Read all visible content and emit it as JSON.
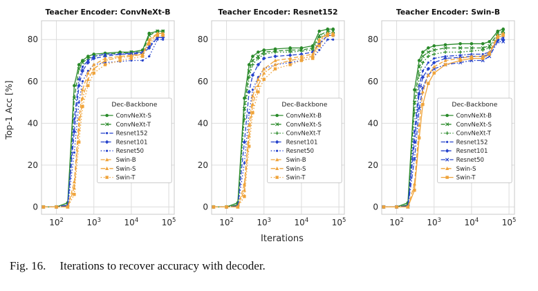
{
  "figure": {
    "caption_label": "Fig. 16.",
    "caption_text": "Iterations to recover accuracy with decoder.",
    "ylabel": "Top-1 Acc [%]",
    "xlabel": "Iterations"
  },
  "colors": {
    "convnext_green": "#2a8a2a",
    "resnet_blue": "#2643cc",
    "swin_orange": "#efa33a",
    "grid": "#dcdcdc",
    "spine": "#c9c9c9",
    "text": "#262626",
    "title": "#111111"
  },
  "chart_data": [
    {
      "type": "line",
      "title": "Teacher Encoder: ConvNeXt-B",
      "xscale": "log",
      "xlim": [
        40,
        140000
      ],
      "ylim": [
        -3.5,
        89
      ],
      "xticks": [
        100,
        1000,
        10000,
        100000
      ],
      "yticks": [
        0,
        20,
        40,
        60,
        80
      ],
      "legend_title": "Dec-Backbone",
      "x": [
        45,
        100,
        200,
        300,
        400,
        500,
        700,
        1000,
        2000,
        5000,
        10000,
        20000,
        30000,
        50000,
        70000
      ],
      "series": [
        {
          "name": "ConvNeXt-S",
          "color": "#2a8a2a",
          "style": "solid",
          "marker": "circle",
          "values": [
            0,
            0,
            2,
            58,
            68,
            70,
            72,
            73,
            73.5,
            74,
            74,
            75,
            83,
            84,
            84
          ]
        },
        {
          "name": "ConvNeXt-T",
          "color": "#2a8a2a",
          "style": "dashed",
          "marker": "x",
          "values": [
            0,
            0,
            1,
            52,
            66,
            69,
            71,
            72,
            73,
            73.5,
            74,
            74,
            82,
            84,
            84
          ]
        },
        {
          "name": "Resnet152",
          "color": "#2643cc",
          "style": "dashdot",
          "marker": "dot",
          "values": [
            0,
            0,
            1,
            42,
            61,
            67,
            70,
            72,
            73,
            73,
            73.5,
            74,
            77,
            81,
            81
          ]
        },
        {
          "name": "Resnet101",
          "color": "#2643cc",
          "style": "dashed",
          "marker": "diamond",
          "values": [
            0,
            0,
            0.5,
            36,
            58,
            65,
            69,
            71,
            72,
            73,
            73,
            73.5,
            76,
            81,
            81
          ]
        },
        {
          "name": "Resnet50",
          "color": "#2643cc",
          "style": "dotted",
          "marker": "dot",
          "values": [
            0,
            0,
            0,
            26,
            50,
            60,
            65,
            68,
            69,
            69.5,
            70,
            70,
            72,
            80,
            80
          ]
        },
        {
          "name": "Swin-B",
          "color": "#efa33a",
          "style": "dashed",
          "marker": "triangle",
          "values": [
            0,
            0,
            0,
            12,
            42,
            56,
            64,
            68,
            71,
            72,
            72.5,
            73,
            80,
            83,
            83
          ]
        },
        {
          "name": "Swin-S",
          "color": "#efa33a",
          "style": "dashdot",
          "marker": "triangle",
          "values": [
            0,
            0,
            0,
            9,
            37,
            52,
            61,
            66,
            70,
            71.5,
            72,
            73,
            79,
            83,
            83
          ]
        },
        {
          "name": "Swin-T",
          "color": "#efa33a",
          "style": "dotted",
          "marker": "square",
          "values": [
            0,
            0,
            0,
            6,
            31,
            48,
            58,
            64,
            68,
            70,
            71,
            72,
            78,
            82,
            82
          ]
        }
      ]
    },
    {
      "type": "line",
      "title": "Teacher Encoder: Resnet152",
      "xscale": "log",
      "xlim": [
        40,
        140000
      ],
      "ylim": [
        -3.5,
        89
      ],
      "xticks": [
        100,
        1000,
        10000,
        100000
      ],
      "yticks": [
        0,
        20,
        40,
        60,
        80
      ],
      "legend_title": "Dec-Backbone",
      "x": [
        45,
        100,
        200,
        300,
        400,
        500,
        700,
        1000,
        2000,
        5000,
        10000,
        20000,
        30000,
        50000,
        70000
      ],
      "series": [
        {
          "name": "ConvNeXt-B",
          "color": "#2a8a2a",
          "style": "solid",
          "marker": "circle",
          "values": [
            0,
            0,
            2,
            52,
            68,
            72,
            74,
            75,
            75.5,
            76,
            76,
            77,
            84,
            85,
            85
          ]
        },
        {
          "name": "ConvNeXt-S",
          "color": "#2a8a2a",
          "style": "dashed",
          "marker": "x",
          "values": [
            0,
            0,
            1,
            47,
            65,
            70,
            72,
            74,
            74.5,
            75,
            75,
            76,
            82,
            84,
            84
          ]
        },
        {
          "name": "ConvNeXt-T",
          "color": "#2a8a2a",
          "style": "dotted",
          "marker": "plus",
          "values": [
            0,
            0,
            1,
            42,
            62,
            68,
            71,
            73,
            74,
            74,
            74.5,
            75,
            81,
            83,
            83
          ]
        },
        {
          "name": "Resnet101",
          "color": "#2643cc",
          "style": "dashed",
          "marker": "diamond",
          "values": [
            0,
            0,
            0.5,
            31,
            55,
            63,
            68,
            71,
            72,
            72.5,
            73,
            74,
            78,
            82,
            82
          ]
        },
        {
          "name": "Resnet50",
          "color": "#2643cc",
          "style": "dotted",
          "marker": "dot",
          "values": [
            0,
            0,
            0,
            21,
            45,
            56,
            62,
            66,
            68,
            69,
            70,
            71,
            75,
            80,
            80
          ]
        },
        {
          "name": "Swin-B",
          "color": "#efa33a",
          "style": "dashed",
          "marker": "triangle",
          "values": [
            0,
            0,
            0,
            11,
            39,
            53,
            61,
            66,
            70,
            71,
            72,
            73,
            80,
            83,
            83
          ]
        },
        {
          "name": "Swin-S",
          "color": "#efa33a",
          "style": "dashdot",
          "marker": "triangle",
          "values": [
            0,
            0,
            0,
            8,
            34,
            49,
            58,
            64,
            68,
            70,
            71,
            72,
            79,
            83,
            83
          ]
        },
        {
          "name": "Swin-T",
          "color": "#efa33a",
          "style": "dotted",
          "marker": "square",
          "values": [
            0,
            0,
            0,
            5,
            29,
            45,
            55,
            61,
            66,
            68,
            70,
            71,
            77,
            82,
            82
          ]
        }
      ]
    },
    {
      "type": "line",
      "title": "Teacher Encoder: Swin-B",
      "xscale": "log",
      "xlim": [
        40,
        140000
      ],
      "ylim": [
        -3.5,
        89
      ],
      "xticks": [
        100,
        1000,
        10000,
        100000
      ],
      "yticks": [
        0,
        20,
        40,
        60,
        80
      ],
      "legend_title": "Dec-Backbone",
      "x": [
        45,
        100,
        200,
        300,
        400,
        500,
        700,
        1000,
        2000,
        5000,
        10000,
        20000,
        30000,
        50000,
        70000
      ],
      "series": [
        {
          "name": "ConvNeXt-B",
          "color": "#2a8a2a",
          "style": "solid",
          "marker": "circle",
          "values": [
            0,
            0,
            2,
            56,
            70,
            74,
            76,
            77,
            77.5,
            78,
            78,
            78,
            79,
            84,
            85
          ]
        },
        {
          "name": "ConvNeXt-S",
          "color": "#2a8a2a",
          "style": "dashed",
          "marker": "x",
          "values": [
            0,
            0,
            1,
            50,
            67,
            72,
            74,
            75,
            76,
            76,
            76,
            76,
            77,
            83,
            84
          ]
        },
        {
          "name": "ConvNeXt-T",
          "color": "#2a8a2a",
          "style": "dotted",
          "marker": "plus",
          "values": [
            0,
            0,
            1,
            45,
            63,
            69,
            72,
            73,
            74,
            74,
            74.5,
            75,
            76,
            82,
            83
          ]
        },
        {
          "name": "Resnet152",
          "color": "#2643cc",
          "style": "dashdot",
          "marker": "dot",
          "values": [
            0,
            0,
            0.5,
            36,
            58,
            65,
            69,
            71,
            72,
            72.5,
            73,
            73,
            74,
            80,
            81
          ]
        },
        {
          "name": "Resnet101",
          "color": "#2643cc",
          "style": "dashed",
          "marker": "diamond",
          "values": [
            0,
            0,
            0.5,
            31,
            54,
            62,
            66,
            69,
            71,
            71.5,
            72,
            72,
            73,
            80,
            80
          ]
        },
        {
          "name": "Resnet50",
          "color": "#2643cc",
          "style": "dashdot",
          "marker": "x",
          "values": [
            0,
            0,
            0,
            23,
            47,
            57,
            63,
            66,
            68,
            69,
            70,
            70,
            72,
            79,
            79
          ]
        },
        {
          "name": "Swin-S",
          "color": "#efa33a",
          "style": "dashed",
          "marker": "triangle",
          "values": [
            0,
            0,
            0,
            11,
            39,
            55,
            63,
            67,
            70,
            71,
            72,
            72,
            74,
            82,
            83
          ]
        },
        {
          "name": "Swin-T",
          "color": "#efa33a",
          "style": "solid",
          "marker": "square",
          "values": [
            0,
            0,
            0,
            8,
            33,
            49,
            59,
            64,
            68,
            70,
            71,
            71,
            73,
            81,
            82
          ]
        }
      ]
    }
  ]
}
